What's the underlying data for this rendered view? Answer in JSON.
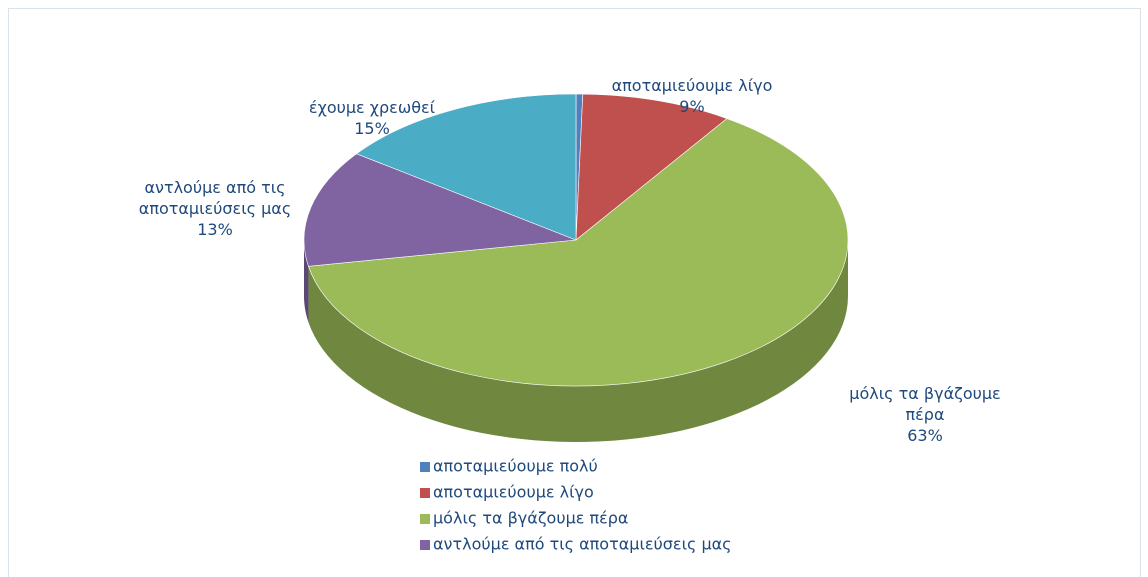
{
  "chart_data": {
    "type": "pie",
    "categories": [
      "αποταμιεύουμε πολύ",
      "αποταμιεύουμε λίγο",
      "μόλις τα βγάζουμε πέρα",
      "αντλούμε από τις αποταμιεύσεις μας",
      "έχουμε χρεωθεί"
    ],
    "values": [
      0.4,
      9,
      63,
      13,
      15
    ],
    "value_labels": [
      null,
      "9%",
      "63%",
      "13%",
      "15%"
    ],
    "colors": [
      "#4f81bd",
      "#c0504d",
      "#9bbb59",
      "#8064a2",
      "#4bacc6"
    ],
    "legend": "bottom"
  }
}
